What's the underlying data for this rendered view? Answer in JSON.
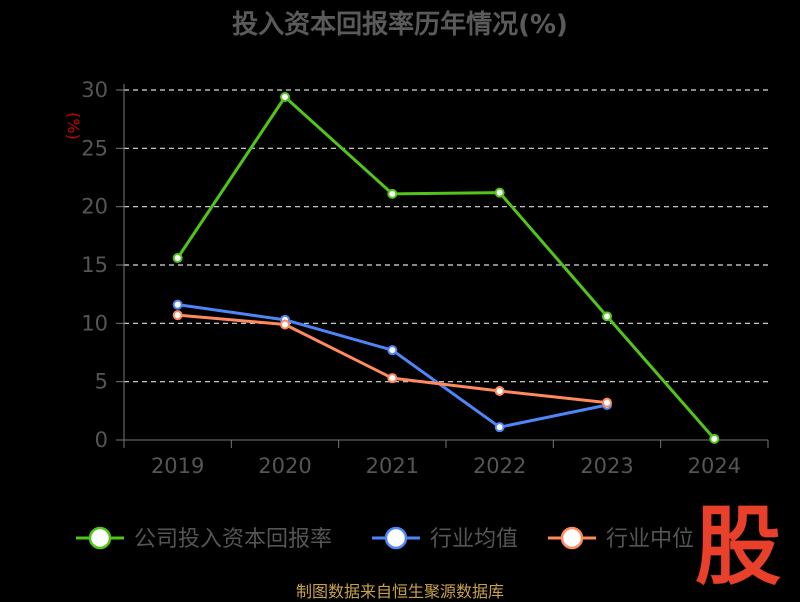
{
  "chart_data": {
    "type": "line",
    "title": "投入资本回报率历年情况(%)",
    "ylabel": "(%)",
    "xlabel": "",
    "categories": [
      "2019",
      "2020",
      "2021",
      "2022",
      "2023",
      "2024"
    ],
    "ylim": [
      0,
      30
    ],
    "yticks": [
      0,
      5,
      10,
      15,
      20,
      25,
      30
    ],
    "grid": true,
    "legend_position": "bottom",
    "series": [
      {
        "name": "公司投入资本回报率",
        "color": "#52c41a",
        "values": [
          15.6,
          29.4,
          21.1,
          21.2,
          10.6,
          0.1
        ]
      },
      {
        "name": "行业均值",
        "color": "#4f86f7",
        "values": [
          11.6,
          10.3,
          7.7,
          1.1,
          3.0,
          null
        ]
      },
      {
        "name": "行业中位",
        "color": "#ff8a5c",
        "values": [
          10.7,
          9.9,
          5.3,
          4.2,
          3.2,
          null
        ]
      }
    ]
  },
  "colors": {
    "background": "#000000",
    "text": "#555555",
    "title": "#5a5a5a",
    "axis": "#777777",
    "grid": "#dddddd",
    "ylabel": "#cc0000",
    "watermark": "#e8402a",
    "source": "#c8a24a"
  },
  "watermark": {
    "text": "股",
    "icon": "stock-logo-icon"
  },
  "source_note": "制图数据来自恒生聚源数据库"
}
